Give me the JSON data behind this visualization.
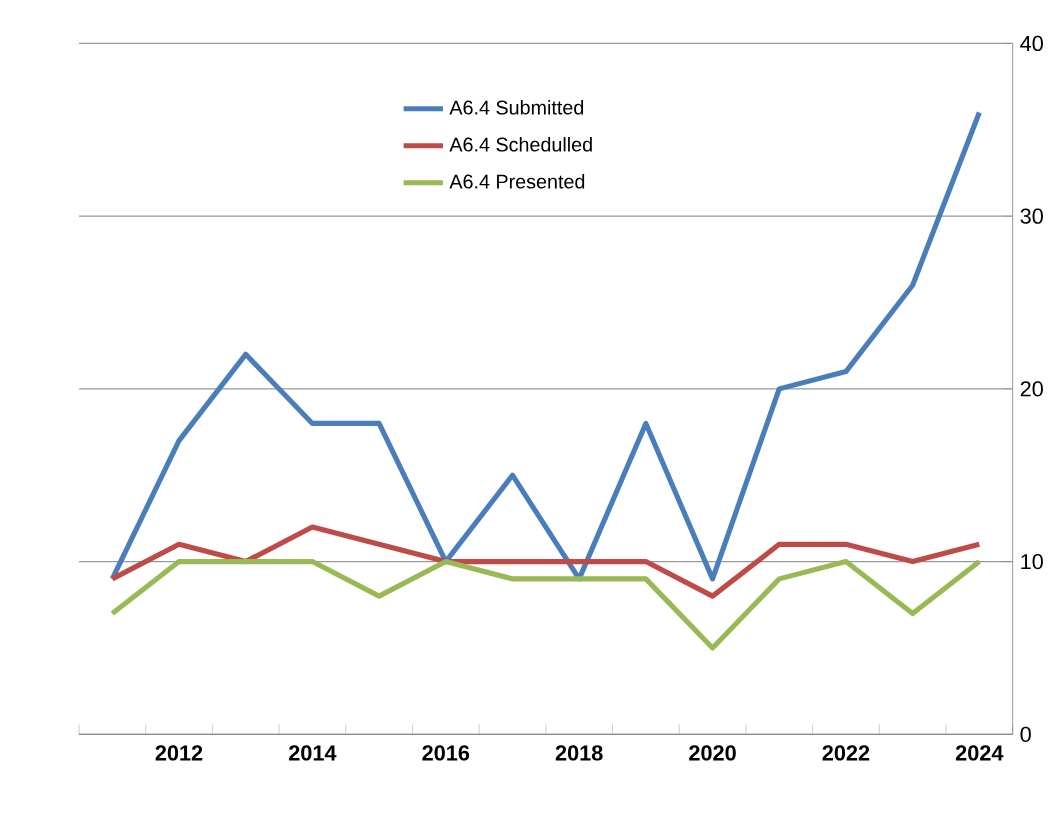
{
  "chart_data": {
    "type": "line",
    "categories": [
      null,
      "2012",
      null,
      "2014",
      null,
      "2016",
      null,
      "2018",
      null,
      "2020",
      null,
      "2022",
      null,
      "2024"
    ],
    "series": [
      {
        "name": "A6.4 Submitted",
        "color": "#4a7ebb",
        "values": [
          9,
          17,
          22,
          18,
          18,
          10,
          15,
          9,
          18,
          9,
          20,
          21,
          26,
          36
        ]
      },
      {
        "name": "A6.4 Schedulled",
        "color": "#be4b48",
        "values": [
          9,
          11,
          10,
          12,
          11,
          10,
          10,
          10,
          10,
          8,
          11,
          11,
          10,
          11
        ]
      },
      {
        "name": "A6.4 Presented",
        "color": "#98b954",
        "values": [
          7,
          10,
          10,
          10,
          8,
          10,
          9,
          9,
          9,
          5,
          9,
          10,
          7,
          10
        ]
      }
    ],
    "ylim": [
      0,
      40
    ],
    "yticks": [
      0,
      10,
      20,
      30,
      40
    ],
    "grid": "y",
    "legend": "top",
    "marker": "none",
    "line_style": "solid"
  }
}
